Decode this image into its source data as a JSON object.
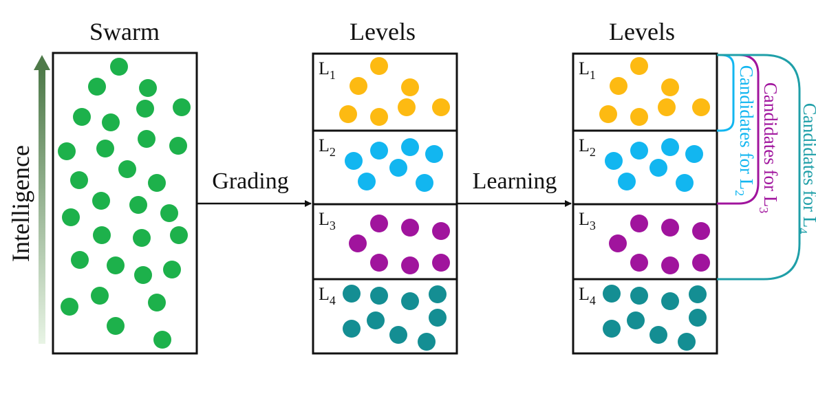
{
  "swarm": {
    "title": "Swarm",
    "axis_label": "Intelligence"
  },
  "steps": {
    "grading": "Grading",
    "learning": "Learning"
  },
  "levels_graded": {
    "title": "Levels",
    "levels": [
      {
        "prefix": "L",
        "sub": "1",
        "color": "#FDBA12"
      },
      {
        "prefix": "L",
        "sub": "2",
        "color": "#12B6F0"
      },
      {
        "prefix": "L",
        "sub": "3",
        "color": "#A0149D"
      },
      {
        "prefix": "L",
        "sub": "4",
        "color": "#148E93"
      }
    ]
  },
  "levels_learning": {
    "title": "Levels",
    "levels": [
      {
        "prefix": "L",
        "sub": "1",
        "color": "#FDBA12"
      },
      {
        "prefix": "L",
        "sub": "2",
        "color": "#12B6F0"
      },
      {
        "prefix": "L",
        "sub": "3",
        "color": "#A0149D"
      },
      {
        "prefix": "L",
        "sub": "4",
        "color": "#148E93"
      }
    ]
  },
  "candidates": [
    {
      "text": "Candidates for L",
      "sub": "2",
      "color": "#12B6F0"
    },
    {
      "text": "Candidates for L",
      "sub": "3",
      "color": "#A0149D"
    },
    {
      "text": "Candidates for L",
      "sub": "4",
      "color": "#1F9FA8"
    }
  ],
  "colors": {
    "swarm_particle": "#1DB14B",
    "axis_dark": "#4E7A49",
    "axis_light": "#E8F4E5",
    "outline": "#111111"
  }
}
